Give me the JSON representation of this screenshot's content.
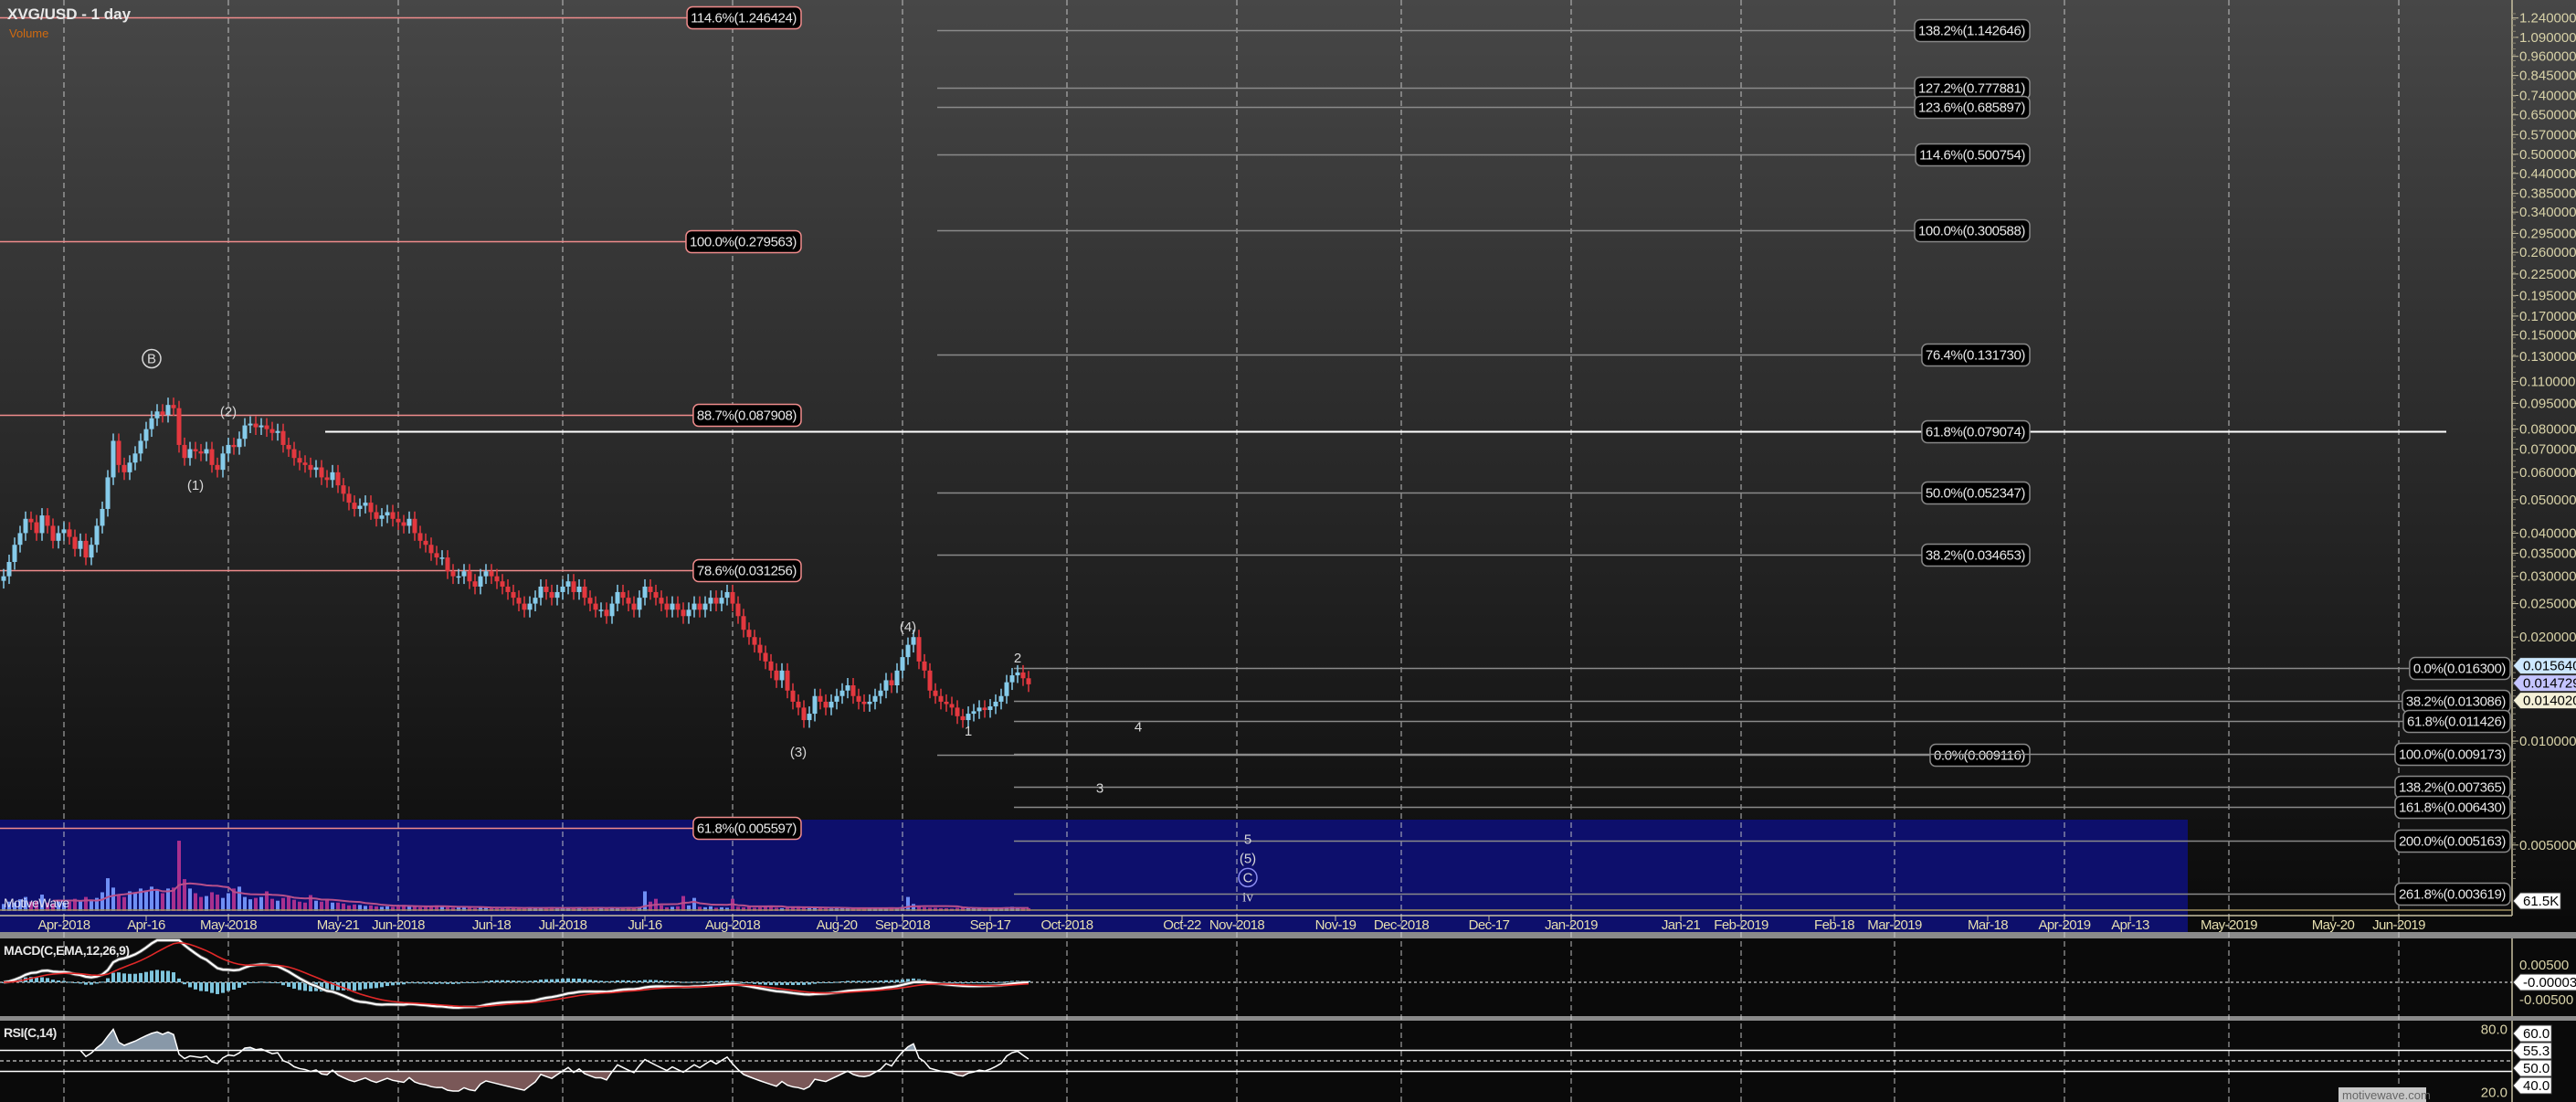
{
  "header": {
    "title": "XVG/USD - 1 day",
    "volume_label": "Volume"
  },
  "watermark": {
    "left": "MotiveWave",
    "right": "motivewave.com"
  },
  "colors": {
    "up_candle": "#86cbea",
    "down_candle": "#e3383f",
    "volume_up": "#6f8ff5",
    "volume_down": "#a8308e",
    "volume_panel": "#0d0f6c",
    "fib_pink": "#f08c8c",
    "fib_gray": "#8a8a8a",
    "macd_line": "#ffffff",
    "macd_signal": "#e02828",
    "macd_hist": "#7ec4dc",
    "rsi_over": "#8898a8",
    "rsi_under": "#7a5858",
    "axis_text": "#d8d2a8"
  },
  "chart_data": {
    "type": "candlestick",
    "title": "XVG/USD - 1 day",
    "interval": "1 day",
    "y_scale": "log",
    "start_date": "2018-03-21",
    "close": [
      0.03,
      0.033,
      0.037,
      0.04,
      0.044,
      0.043,
      0.04,
      0.045,
      0.042,
      0.038,
      0.04,
      0.041,
      0.039,
      0.036,
      0.038,
      0.034,
      0.037,
      0.042,
      0.047,
      0.058,
      0.074,
      0.063,
      0.06,
      0.064,
      0.068,
      0.074,
      0.08,
      0.086,
      0.09,
      0.088,
      0.094,
      0.092,
      0.072,
      0.066,
      0.07,
      0.069,
      0.068,
      0.07,
      0.063,
      0.061,
      0.068,
      0.072,
      0.071,
      0.075,
      0.082,
      0.083,
      0.081,
      0.082,
      0.08,
      0.078,
      0.079,
      0.072,
      0.07,
      0.066,
      0.064,
      0.063,
      0.061,
      0.062,
      0.058,
      0.057,
      0.06,
      0.055,
      0.052,
      0.049,
      0.047,
      0.048,
      0.049,
      0.046,
      0.044,
      0.045,
      0.046,
      0.044,
      0.043,
      0.042,
      0.044,
      0.04,
      0.038,
      0.037,
      0.035,
      0.034,
      0.034,
      0.031,
      0.03,
      0.03,
      0.031,
      0.029,
      0.028,
      0.03,
      0.031,
      0.03,
      0.029,
      0.028,
      0.027,
      0.026,
      0.025,
      0.024,
      0.025,
      0.026,
      0.028,
      0.027,
      0.026,
      0.027,
      0.028,
      0.029,
      0.027,
      0.028,
      0.026,
      0.025,
      0.024,
      0.024,
      0.023,
      0.025,
      0.027,
      0.026,
      0.025,
      0.024,
      0.026,
      0.028,
      0.027,
      0.026,
      0.025,
      0.024,
      0.025,
      0.024,
      0.023,
      0.024,
      0.025,
      0.024,
      0.025,
      0.026,
      0.025,
      0.026,
      0.027,
      0.025,
      0.023,
      0.021,
      0.02,
      0.019,
      0.018,
      0.017,
      0.016,
      0.015,
      0.016,
      0.014,
      0.013,
      0.0125,
      0.0115,
      0.012,
      0.0135,
      0.013,
      0.0125,
      0.013,
      0.0135,
      0.014,
      0.0145,
      0.0135,
      0.013,
      0.0128,
      0.013,
      0.0135,
      0.014,
      0.015,
      0.0145,
      0.016,
      0.0175,
      0.019,
      0.02,
      0.017,
      0.016,
      0.014,
      0.0135,
      0.013,
      0.0128,
      0.0125,
      0.0118,
      0.0115,
      0.012,
      0.0122,
      0.0125,
      0.0123,
      0.0126,
      0.013,
      0.0135,
      0.0148,
      0.0155,
      0.0158,
      0.0152,
      0.0146
    ],
    "volume_k": [
      150,
      200,
      180,
      250,
      300,
      200,
      220,
      350,
      180,
      160,
      200,
      180,
      200,
      260,
      220,
      300,
      240,
      280,
      400,
      700,
      500,
      350,
      300,
      420,
      380,
      480,
      420,
      520,
      460,
      380,
      480,
      500,
      1500,
      680,
      480,
      380,
      300,
      320,
      400,
      350,
      280,
      380,
      480,
      520,
      300,
      250,
      280,
      300,
      420,
      260,
      220,
      280,
      300,
      240,
      200,
      180,
      340,
      220,
      200,
      260,
      180,
      180,
      160,
      120,
      140,
      130,
      110,
      120,
      100,
      90,
      100,
      90,
      120,
      130,
      100,
      90,
      80,
      90,
      110,
      120,
      90,
      80,
      70,
      80,
      90,
      70,
      60,
      80,
      70,
      60,
      60,
      70,
      80,
      70,
      60,
      60,
      70,
      60,
      60,
      80,
      70,
      60,
      70,
      80,
      60,
      70,
      60,
      70,
      60,
      80,
      60,
      70,
      60,
      80,
      70,
      60,
      90,
      420,
      200,
      260,
      120,
      80,
      90,
      100,
      320,
      120,
      280,
      90,
      80,
      100,
      70,
      80,
      70,
      260,
      90,
      80,
      100,
      70,
      80,
      90,
      100,
      70,
      60,
      80,
      90,
      100,
      70,
      60,
      60,
      70,
      60,
      50,
      60,
      70,
      60,
      50,
      60,
      60,
      70,
      60,
      70,
      60,
      70,
      60,
      90,
      300,
      150,
      100,
      80,
      70,
      70,
      60,
      60,
      50,
      70,
      80,
      60,
      60,
      50,
      60,
      60,
      70,
      60,
      80,
      90,
      70,
      60,
      61.5
    ],
    "volume_tag": "61.5K",
    "y_ticks": [
      "1.240000",
      "1.090000",
      "0.960000",
      "0.845000",
      "0.740000",
      "0.650000",
      "0.570000",
      "0.500000",
      "0.440000",
      "0.385000",
      "0.340000",
      "0.295000",
      "0.260000",
      "0.225000",
      "0.195000",
      "0.170000",
      "0.150000",
      "0.130000",
      "0.110000",
      "0.095000",
      "0.080000",
      "0.070000",
      "0.060000",
      "0.050000",
      "0.040000",
      "0.035000",
      "0.030000",
      "0.025000",
      "0.020000",
      "0.010000",
      "0.005000"
    ],
    "x_ticks": [
      {
        "label": "Apr-2018",
        "date": "2018-04-01"
      },
      {
        "label": "Apr-16",
        "date": "2018-04-16"
      },
      {
        "label": "May-2018",
        "date": "2018-05-01"
      },
      {
        "label": "May-21",
        "date": "2018-05-21"
      },
      {
        "label": "Jun-2018",
        "date": "2018-06-01"
      },
      {
        "label": "Jun-18",
        "date": "2018-06-18"
      },
      {
        "label": "Jul-2018",
        "date": "2018-07-01"
      },
      {
        "label": "Jul-16",
        "date": "2018-07-16"
      },
      {
        "label": "Aug-2018",
        "date": "2018-08-01"
      },
      {
        "label": "Aug-20",
        "date": "2018-08-20"
      },
      {
        "label": "Sep-2018",
        "date": "2018-09-01"
      },
      {
        "label": "Sep-17",
        "date": "2018-09-17"
      },
      {
        "label": "Oct-2018",
        "date": "2018-10-01"
      },
      {
        "label": "Oct-22",
        "date": "2018-10-22"
      },
      {
        "label": "Nov-2018",
        "date": "2018-11-01"
      },
      {
        "label": "Nov-19",
        "date": "2018-11-19"
      },
      {
        "label": "Dec-2018",
        "date": "2018-12-01"
      },
      {
        "label": "Dec-17",
        "date": "2018-12-17"
      },
      {
        "label": "Jan-2019",
        "date": "2019-01-01"
      },
      {
        "label": "Jan-21",
        "date": "2019-01-21"
      },
      {
        "label": "Feb-2019",
        "date": "2019-02-01"
      },
      {
        "label": "Feb-18",
        "date": "2019-02-18"
      },
      {
        "label": "Mar-2019",
        "date": "2019-03-01"
      },
      {
        "label": "Mar-18",
        "date": "2019-03-18"
      },
      {
        "label": "Apr-2019",
        "date": "2019-04-01"
      },
      {
        "label": "Apr-13",
        "date": "2019-04-13"
      },
      {
        "label": "May-2019",
        "date": "2019-05-01"
      },
      {
        "label": "May-20",
        "date": "2019-05-20"
      },
      {
        "label": "Jun-2019",
        "date": "2019-06-01"
      }
    ],
    "last_price_tags": [
      {
        "label": "0.015640",
        "color": "#cde8ff"
      },
      {
        "label": "0.014729",
        "color": "#c4c4ff"
      },
      {
        "label": "0.014020",
        "color": "#f4f0d8"
      }
    ],
    "fib_sets": [
      {
        "color": "#f08c8c",
        "levels": [
          {
            "label": "114.6%(1.246424)"
          },
          {
            "label": "100.0%(0.279563)"
          },
          {
            "label": "88.7%(0.087908)"
          },
          {
            "label": "78.6%(0.031256)"
          },
          {
            "label": "61.8%(0.005597)"
          }
        ]
      },
      {
        "color": "#8a8a8a",
        "levels": [
          {
            "label": "138.2%(1.142646)"
          },
          {
            "label": "127.2%(0.777881)"
          },
          {
            "label": "123.6%(0.685897)"
          },
          {
            "label": "114.6%(0.500754)"
          },
          {
            "label": "100.0%(0.300588)"
          },
          {
            "label": "76.4%(0.131730)"
          },
          {
            "label": "61.8%(0.079074)",
            "color": "#ffffff"
          },
          {
            "label": "50.0%(0.052347)"
          },
          {
            "label": "38.2%(0.034653)"
          },
          {
            "label": "0.0%(0.009116)"
          }
        ]
      },
      {
        "color": "#8a8a8a",
        "levels": [
          {
            "label": "0.0%(0.016300)"
          },
          {
            "label": "38.2%(0.013086)"
          },
          {
            "label": "61.8%(0.011426)"
          },
          {
            "label": "100.0%(0.009173)"
          },
          {
            "label": "138.2%(0.007365)"
          },
          {
            "label": "161.8%(0.006430)"
          },
          {
            "label": "200.0%(0.005163)"
          },
          {
            "label": "261.8%(0.003619)"
          }
        ]
      }
    ],
    "wave_labels": [
      {
        "text": "B",
        "date": "2018-04-17",
        "price": 0.128,
        "circled": true,
        "color": "#d8d8d8"
      },
      {
        "text": "(1)",
        "date": "2018-04-25",
        "price": 0.055,
        "color": "#d8d8d8"
      },
      {
        "text": "(2)",
        "date": "2018-05-01",
        "price": 0.09,
        "color": "#d8d8d8"
      },
      {
        "text": "(3)",
        "date": "2018-08-13",
        "price": 0.0093,
        "color": "#d8d8d8"
      },
      {
        "text": "(4)",
        "date": "2018-09-02",
        "price": 0.0214,
        "color": "#d8d8d8"
      },
      {
        "text": "1",
        "date": "2018-09-13",
        "price": 0.0107,
        "color": "#ffffff"
      },
      {
        "text": "2",
        "date": "2018-09-22",
        "price": 0.0174,
        "color": "#ffffff"
      },
      {
        "text": "3",
        "date": "2018-10-07",
        "price": 0.0073,
        "color": "#ffffff"
      },
      {
        "text": "4",
        "date": "2018-10-14",
        "price": 0.011,
        "color": "#ffffff"
      },
      {
        "text": "5",
        "date": "2018-11-03",
        "price": 0.0052,
        "color": "#ffffff"
      },
      {
        "text": "(5)",
        "date": "2018-11-03",
        "price": 0.00472,
        "color": "#8a8cf0"
      },
      {
        "text": "C",
        "date": "2018-11-03",
        "price": 0.0043,
        "circled": true,
        "color": "#8a8cf0"
      },
      {
        "text": "iv",
        "date": "2018-11-03",
        "price": 0.0038,
        "color": "#8a8cf0",
        "serif": true
      }
    ],
    "macd": {
      "label": "MACD(C,EMA,12,26,9)",
      "ticks": [
        "0.00500",
        "-0.00500"
      ],
      "tag": "-0.000038"
    },
    "rsi": {
      "label": "RSI(C,14)",
      "ticks": [
        "80.0",
        "20.0"
      ],
      "tags": [
        "60.0",
        "55.3",
        "50.0",
        "40.0"
      ]
    }
  }
}
